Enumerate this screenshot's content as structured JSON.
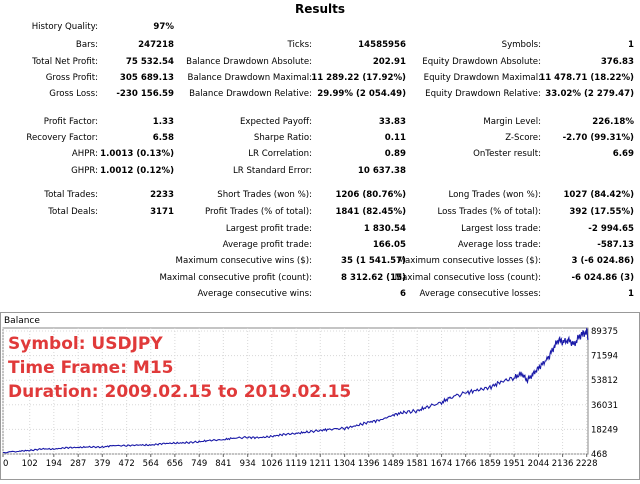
{
  "title": "Results",
  "stats": {
    "c1": [
      {
        "label": "History Quality:",
        "value": "97%"
      },
      {
        "label": "Bars:",
        "value": "247218"
      },
      {
        "label": "Total Net Profit:",
        "value": "75 532.54"
      },
      {
        "label": "Gross Profit:",
        "value": "305 689.13"
      },
      {
        "label": "Gross Loss:",
        "value": "-230 156.59"
      },
      {
        "label": "Profit Factor:",
        "value": "1.33"
      },
      {
        "label": "Recovery Factor:",
        "value": "6.58"
      },
      {
        "label": "AHPR:",
        "value": "1.0013 (0.13%)"
      },
      {
        "label": "GHPR:",
        "value": "1.0012 (0.12%)"
      },
      {
        "label": "Total Trades:",
        "value": "2233"
      },
      {
        "label": "Total Deals:",
        "value": "3171"
      }
    ],
    "c2": [
      {
        "label": "Ticks:",
        "value": "14585956"
      },
      {
        "label": "Balance Drawdown Absolute:",
        "value": "202.91"
      },
      {
        "label": "Balance Drawdown Maximal:",
        "value": "11 289.22 (17.92%)"
      },
      {
        "label": "Balance Drawdown Relative:",
        "value": "29.99% (2 054.49)"
      },
      {
        "label": "Expected Payoff:",
        "value": "33.83"
      },
      {
        "label": "Sharpe Ratio:",
        "value": "0.11"
      },
      {
        "label": "LR Correlation:",
        "value": "0.89"
      },
      {
        "label": "LR Standard Error:",
        "value": "10 637.38"
      },
      {
        "label": "Short Trades (won %):",
        "value": "1206 (80.76%)"
      },
      {
        "label": "Profit Trades (% of total):",
        "value": "1841 (82.45%)"
      },
      {
        "label": "Largest profit trade:",
        "value": "1 830.54"
      },
      {
        "label": "Average profit trade:",
        "value": "166.05"
      },
      {
        "label": "Maximum consecutive wins ($):",
        "value": "35 (1 541.57)"
      },
      {
        "label": "Maximal consecutive profit (count):",
        "value": "8 312.62 (15)"
      },
      {
        "label": "Average consecutive wins:",
        "value": "6"
      }
    ],
    "c3": [
      {
        "label": "Symbols:",
        "value": "1"
      },
      {
        "label": "Equity Drawdown Absolute:",
        "value": "376.83"
      },
      {
        "label": "Equity Drawdown Maximal:",
        "value": "11 478.71 (18.22%)"
      },
      {
        "label": "Equity Drawdown Relative:",
        "value": "33.02% (2 279.47)"
      },
      {
        "label": "Margin Level:",
        "value": "226.18%"
      },
      {
        "label": "Z-Score:",
        "value": "-2.70 (99.31%)"
      },
      {
        "label": "OnTester result:",
        "value": "6.69"
      },
      {
        "label": "Long Trades (won %):",
        "value": "1027 (84.42%)"
      },
      {
        "label": "Loss Trades (% of total):",
        "value": "392 (17.55%)"
      },
      {
        "label": "Largest loss trade:",
        "value": "-2 994.65"
      },
      {
        "label": "Average loss trade:",
        "value": "-587.13"
      },
      {
        "label": "Maximum consecutive losses ($):",
        "value": "3 (-6 024.86)"
      },
      {
        "label": "Maximal consecutive loss (count):",
        "value": "-6 024.86 (3)"
      },
      {
        "label": "Average consecutive losses:",
        "value": "1"
      }
    ]
  },
  "overlay": {
    "symbol": "Symbol: USDJPY",
    "timeframe": "Time Frame: M15",
    "duration": "Duration: 2009.02.15 to 2019.02.15"
  },
  "chart_data": {
    "type": "line",
    "title": "Balance",
    "xlabel": "",
    "ylabel": "",
    "x_ticks": [
      "0",
      "102",
      "194",
      "287",
      "379",
      "472",
      "564",
      "656",
      "749",
      "841",
      "934",
      "1026",
      "1119",
      "1211",
      "1304",
      "1396",
      "1489",
      "1581",
      "1674",
      "1766",
      "1859",
      "1951",
      "2044",
      "2136",
      "2228"
    ],
    "y_ticks": [
      "468",
      "18249",
      "36031",
      "53812",
      "71594",
      "89375"
    ],
    "ylim": [
      468,
      89375
    ],
    "xlim": [
      0,
      2233
    ],
    "grid": true,
    "line_color": "#1a1aa8",
    "series": [
      {
        "x": [
          0,
          60,
          102,
          150,
          194,
          240,
          287,
          330,
          379,
          420,
          472,
          520,
          564,
          610,
          656,
          700,
          749,
          790,
          841,
          880,
          934,
          980,
          1026,
          1070,
          1119,
          1160,
          1211,
          1250,
          1304,
          1350,
          1396,
          1440,
          1489,
          1530,
          1581,
          1620,
          1674,
          1710,
          1766,
          1810,
          1859,
          1900,
          1951,
          1980,
          2000,
          2020,
          2044,
          2080,
          2100,
          2120,
          2136,
          2160,
          2180,
          2200,
          2214,
          2228,
          2233
        ],
        "y": [
          1500,
          2500,
          3000,
          4200,
          4000,
          5000,
          5200,
          5600,
          5400,
          6600,
          6500,
          7000,
          6900,
          8000,
          8300,
          8600,
          9300,
          10300,
          10800,
          12000,
          12500,
          12300,
          13200,
          14600,
          15300,
          16300,
          17500,
          18400,
          19000,
          21000,
          23500,
          25000,
          28600,
          30600,
          31600,
          34600,
          37600,
          41600,
          44600,
          46600,
          48600,
          52600,
          55600,
          58600,
          53600,
          57600,
          62600,
          69600,
          76600,
          83000,
          81500,
          82600,
          79600,
          85600,
          87400,
          88600,
          84000
        ]
      }
    ]
  }
}
